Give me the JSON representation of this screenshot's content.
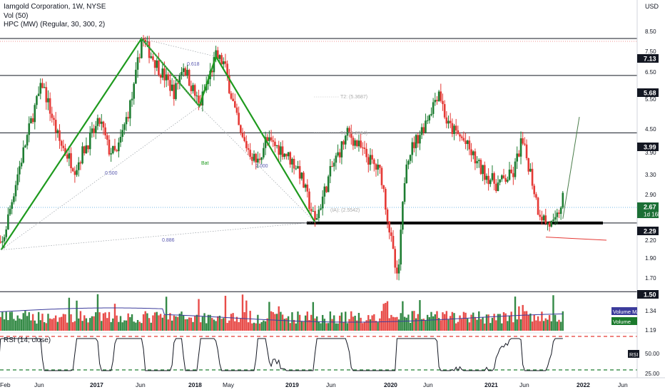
{
  "legend": {
    "title": "Iamgold Corporation, 1W, NYSE",
    "vol": "Vol (50)",
    "hpc": "HPC (MW) (Regular, 30, 300, 2)"
  },
  "price_axis": {
    "unit": "USD",
    "ticks": [
      "8.50",
      "7.50",
      "6.50",
      "5.50",
      "4.50",
      "3.90",
      "3.30",
      "2.90",
      "2.50",
      "2.20",
      "1.90",
      "1.70",
      "1.34",
      "1.19"
    ]
  },
  "badges": [
    {
      "text": "7.13",
      "bg": "#131722",
      "fg": "#ffffff"
    },
    {
      "text": "5.68",
      "bg": "#131722",
      "fg": "#ffffff"
    },
    {
      "text": "3.99",
      "bg": "#131722",
      "fg": "#ffffff"
    },
    {
      "text": "2.67",
      "sub": "1d 16h",
      "bg": "#1b6f35",
      "fg": "#ffffff"
    },
    {
      "text": "2.29",
      "bg": "#131722",
      "fg": "#ffffff"
    },
    {
      "text": "1.50",
      "bg": "#131722",
      "fg": "#ffffff"
    }
  ],
  "volume_tags": [
    {
      "text": "Volume MA",
      "bg": "#3c3c9c"
    },
    {
      "text": "Volume",
      "bg": "#1b7a2c"
    }
  ],
  "rsi": {
    "label": "RSI (14, close)",
    "badge": "RSI",
    "ticks": [
      "50.00",
      "25.00"
    ]
  },
  "time_axis": {
    "labels": [
      "Feb",
      "Jun",
      "2017",
      "Jun",
      "2018",
      "May",
      "2019",
      "Jun",
      "2020",
      "Jun",
      "2021",
      "Jun",
      "2022",
      "Jun"
    ]
  },
  "annotations": {
    "ratio_x_b": "0.618",
    "ratio_ab": "0.500",
    "ratio_bc": "2.000",
    "ratio_xd": "0.886",
    "pattern_name": "Bat",
    "t2": "T2: (5.3687)",
    "t1": "T1: (4.2064)",
    "ia": "(IA): (2.5542)"
  },
  "colors": {
    "up": "#1e7d32",
    "down": "#e53935",
    "pattern": "#1e9a1e",
    "vol_ma": "#3c3c9c",
    "rsi_line": "#131722",
    "rsi_bounds": "#e53935",
    "rsi_lower": "#1e7d32"
  },
  "chart_data": {
    "type": "candlestick",
    "symbol": "Iamgold Corporation, 1W, NYSE",
    "ylim": [
      1.19,
      8.5
    ],
    "yscale": "log",
    "x_range": [
      "2016-02",
      "2022-07"
    ],
    "horizontal_levels": [
      7.13,
      5.68,
      3.99,
      2.29,
      1.5
    ],
    "last_price": 2.67,
    "harmonic_bat": {
      "points": [
        {
          "label": "X",
          "date": "2016-03",
          "price": 1.94
        },
        {
          "label": "A",
          "date": "2017-08",
          "price": 7.13
        },
        {
          "label": "B",
          "date": "2018-03",
          "price": 4.7
        },
        {
          "label": "C",
          "date": "2018-05",
          "price": 6.38
        },
        {
          "label": "D",
          "date": "2019-05",
          "price": 2.3
        }
      ],
      "ratios": {
        "XB": 0.618,
        "AC": 0.5,
        "BD": 2.0,
        "XD": 0.886
      },
      "targets": {
        "T2": 5.3687,
        "T1": 4.2064,
        "IA": 2.5542
      }
    },
    "price_path": [
      [
        "2016-02",
        2.15
      ],
      [
        "2016-03",
        1.94
      ],
      [
        "2016-05",
        3.1
      ],
      [
        "2016-07",
        4.6
      ],
      [
        "2016-08",
        5.4
      ],
      [
        "2016-10",
        3.8
      ],
      [
        "2016-12",
        3.2
      ],
      [
        "2017-01",
        3.6
      ],
      [
        "2017-03",
        4.3
      ],
      [
        "2017-04",
        3.6
      ],
      [
        "2017-05",
        3.5
      ],
      [
        "2017-07",
        5.1
      ],
      [
        "2017-08",
        7.13
      ],
      [
        "2017-10",
        6.0
      ],
      [
        "2017-12",
        5.1
      ],
      [
        "2018-01",
        6.1
      ],
      [
        "2018-03",
        4.7
      ],
      [
        "2018-05",
        6.38
      ],
      [
        "2018-06",
        6.1
      ],
      [
        "2018-08",
        3.9
      ],
      [
        "2018-10",
        3.3
      ],
      [
        "2018-11",
        3.8
      ],
      [
        "2019-01",
        3.6
      ],
      [
        "2019-03",
        3.2
      ],
      [
        "2019-05",
        2.3
      ],
      [
        "2019-07",
        3.2
      ],
      [
        "2019-09",
        4.0
      ],
      [
        "2019-11",
        3.5
      ],
      [
        "2020-01",
        3.1
      ],
      [
        "2020-03",
        1.57
      ],
      [
        "2020-04",
        3.4
      ],
      [
        "2020-06",
        4.1
      ],
      [
        "2020-07",
        4.6
      ],
      [
        "2020-08",
        5.2
      ],
      [
        "2020-09",
        4.2
      ],
      [
        "2020-11",
        3.8
      ],
      [
        "2021-01",
        3.2
      ],
      [
        "2021-03",
        2.9
      ],
      [
        "2021-05",
        3.1
      ],
      [
        "2021-06",
        3.8
      ],
      [
        "2021-07",
        3.2
      ],
      [
        "2021-08",
        2.5
      ],
      [
        "2021-09",
        2.29
      ],
      [
        "2021-10",
        2.25
      ],
      [
        "2021-11",
        2.67
      ]
    ],
    "projection": [
      [
        "2021-11",
        2.35
      ],
      [
        "2022-01",
        4.4
      ]
    ],
    "volume_ma": {
      "ylabel": "Volume MA"
    },
    "rsi": {
      "period": 14,
      "levels": [
        70,
        30
      ],
      "ticks": [
        50.0,
        25.0
      ]
    }
  }
}
